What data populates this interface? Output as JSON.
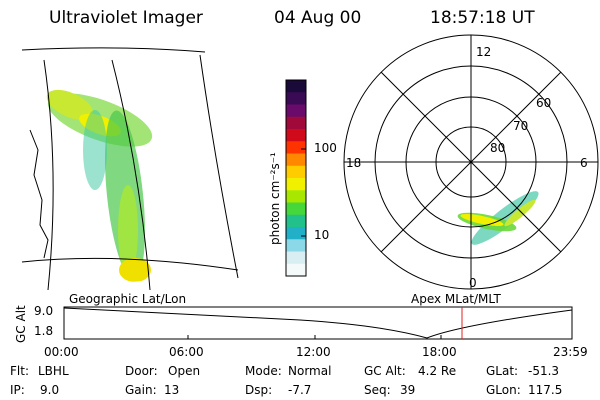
{
  "header": {
    "instrument": "Ultraviolet Imager",
    "date": "04 Aug 00",
    "time": "18:57:18 UT"
  },
  "colorbar": {
    "unit_label": "photon cm⁻²s⁻¹",
    "ticks": [
      "100",
      "10"
    ],
    "colors": [
      "#1a0a3a",
      "#3a0a55",
      "#6a0a6a",
      "#a00a3a",
      "#d00a1a",
      "#ff3300",
      "#ff8800",
      "#ffcc00",
      "#f0f000",
      "#a8e800",
      "#46d83a",
      "#22c08a",
      "#22b0c8",
      "#8ad8e8",
      "#d8eef2",
      "#f4f9fa"
    ]
  },
  "polar": {
    "clock_labels": {
      "top": "12",
      "left": "18",
      "right": "6",
      "bottom": "0"
    },
    "lat_labels": [
      "60",
      "70",
      "80"
    ]
  },
  "map_caption": "Geographic Lat/Lon",
  "polar_caption": "Apex MLat/MLT",
  "gc_plot": {
    "ylabel": "GC Alt",
    "yticks": [
      "9.0",
      "1.8"
    ],
    "xticks": [
      "00:00",
      "06:00",
      "12:00",
      "18:00",
      "23:59"
    ],
    "marker_color": "#e02020"
  },
  "info": {
    "row1": {
      "flt_label": "Flt:",
      "flt_value": "LBHL",
      "door_label": "Door:",
      "door_value": "Open",
      "mode_label": "Mode:",
      "mode_value": "Normal",
      "gcalt_label": "GC Alt:",
      "gcalt_value": "4.2 Re",
      "glat_label": "GLat:",
      "glat_value": "-51.3"
    },
    "row2": {
      "ip_label": "IP:",
      "ip_value": "9.0",
      "gain_label": "Gain:",
      "gain_value": "13",
      "dsp_label": "Dsp:",
      "dsp_value": "-7.7",
      "seq_label": "Seq:",
      "seq_value": "39",
      "glon_label": "GLon:",
      "glon_value": "117.5"
    }
  }
}
